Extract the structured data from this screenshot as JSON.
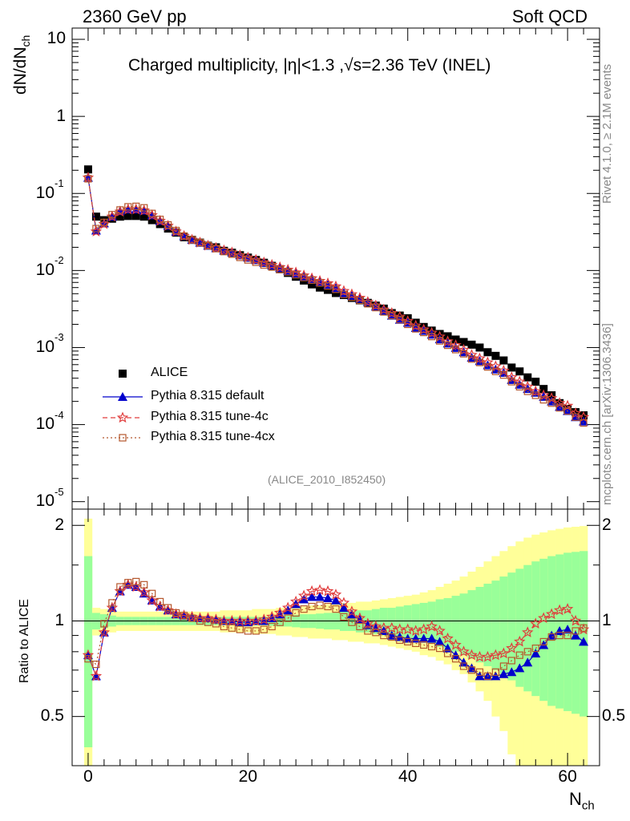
{
  "header": {
    "left": "2360 GeV pp",
    "right": "Soft QCD",
    "title": "Charged multiplicity, |η|<1.3 ,√s=2.36 TeV (INEL)",
    "analysis_id": "(ALICE_2010_I852450)",
    "side_rivet": "Rivet 4.1.0, ≥ 2.1M events",
    "side_mcplots": "mcplots.cern.ch [arXiv:1306.3436]"
  },
  "legend": [
    {
      "label": "ALICE",
      "marker": "square-filled",
      "color": "#000000"
    },
    {
      "label": "Pythia 8.315 default",
      "marker": "triangle-filled",
      "color": "#0000cc"
    },
    {
      "label": "Pythia 8.315 tune-4c",
      "marker": "star-open",
      "color": "#e03c3c"
    },
    {
      "label": "Pythia 8.315 tune-4cx",
      "marker": "square-open",
      "color": "#b5572d"
    }
  ],
  "chart_data": [
    {
      "type": "scatter",
      "title": "Charged multiplicity, |η|<1.3 ,√s=2.36 TeV (INEL)",
      "xlabel": "N_ch",
      "ylabel": "dN/dN_ch",
      "yscale": "log",
      "xlim": [
        -2,
        64
      ],
      "ylim": [
        8e-06,
        14
      ],
      "y_tick_labels": [
        "10",
        "1",
        "10^-1",
        "10^-2",
        "10^-3",
        "10^-4",
        "10^-5"
      ],
      "x": [
        0,
        1,
        2,
        3,
        4,
        5,
        6,
        7,
        8,
        9,
        10,
        11,
        12,
        13,
        14,
        15,
        16,
        17,
        18,
        19,
        20,
        21,
        22,
        23,
        24,
        25,
        26,
        27,
        28,
        29,
        30,
        31,
        32,
        33,
        34,
        35,
        36,
        37,
        38,
        39,
        40,
        41,
        42,
        43,
        44,
        45,
        46,
        47,
        48,
        49,
        50,
        51,
        52,
        53,
        54,
        55,
        56,
        57,
        58,
        59,
        60,
        61,
        62
      ],
      "series": [
        {
          "name": "ALICE",
          "values": [
            0.205,
            0.05,
            0.045,
            0.047,
            0.05,
            0.051,
            0.051,
            0.05,
            0.045,
            0.04,
            0.035,
            0.031,
            0.027,
            0.025,
            0.023,
            0.021,
            0.02,
            0.018,
            0.017,
            0.0158,
            0.0147,
            0.0137,
            0.0126,
            0.0115,
            0.0104,
            0.0093,
            0.0083,
            0.0074,
            0.0066,
            0.006,
            0.0056,
            0.0051,
            0.0048,
            0.0044,
            0.0041,
            0.0038,
            0.0035,
            0.0032,
            0.0028,
            0.0026,
            0.0024,
            0.0021,
            0.00185,
            0.00166,
            0.0015,
            0.0014,
            0.00127,
            0.00118,
            0.00109,
            0.001,
            0.00087,
            0.00078,
            0.00068,
            0.00055,
            0.00049,
            0.00041,
            0.00036,
            0.00029,
            0.00024,
            0.00019,
            0.00016,
            0.000145,
            0.000132
          ]
        },
        {
          "name": "Pythia 8.315 default",
          "values": [
            0.16,
            0.033,
            0.041,
            0.05,
            0.059,
            0.062,
            0.062,
            0.06,
            0.052,
            0.044,
            0.038,
            0.032,
            0.028,
            0.025,
            0.023,
            0.021,
            0.0195,
            0.0182,
            0.0172,
            0.0158,
            0.0147,
            0.0137,
            0.0126,
            0.0116,
            0.0108,
            0.0099,
            0.0091,
            0.0083,
            0.0077,
            0.0071,
            0.0065,
            0.0059,
            0.0051,
            0.0047,
            0.0043,
            0.0039,
            0.0034,
            0.003,
            0.0026,
            0.0023,
            0.0021,
            0.0018,
            0.00165,
            0.00147,
            0.00128,
            0.00113,
            0.00099,
            0.00087,
            0.00074,
            0.00067,
            0.00059,
            0.00052,
            0.00047,
            0.00038,
            0.00033,
            0.00029,
            0.00026,
            0.00023,
            0.0002,
            0.00017,
            0.00015,
            0.000125,
            0.00011
          ]
        },
        {
          "name": "Pythia 8.315 tune-4c",
          "values": [
            0.16,
            0.032,
            0.04,
            0.05,
            0.058,
            0.062,
            0.062,
            0.06,
            0.052,
            0.044,
            0.038,
            0.032,
            0.028,
            0.025,
            0.023,
            0.021,
            0.0196,
            0.0182,
            0.0171,
            0.0157,
            0.0147,
            0.0137,
            0.0127,
            0.0118,
            0.011,
            0.0102,
            0.0094,
            0.0086,
            0.0079,
            0.0073,
            0.0068,
            0.0062,
            0.0054,
            0.0049,
            0.0044,
            0.0039,
            0.0035,
            0.0031,
            0.0028,
            0.0025,
            0.0022,
            0.00192,
            0.00171,
            0.00155,
            0.00138,
            0.0012,
            0.00107,
            0.00093,
            0.0008,
            0.00072,
            0.00064,
            0.00057,
            0.0005,
            0.00041,
            0.00036,
            0.00031,
            0.00027,
            0.00024,
            0.00022,
            0.00019,
            0.000175,
            0.00014,
            0.000125
          ]
        },
        {
          "name": "Pythia 8.315 tune-4cx",
          "values": [
            0.155,
            0.035,
            0.042,
            0.053,
            0.061,
            0.067,
            0.068,
            0.065,
            0.055,
            0.046,
            0.039,
            0.033,
            0.028,
            0.025,
            0.023,
            0.021,
            0.0192,
            0.0176,
            0.0163,
            0.0148,
            0.0137,
            0.0128,
            0.0118,
            0.0111,
            0.0103,
            0.0096,
            0.0088,
            0.0081,
            0.0075,
            0.0069,
            0.0063,
            0.0057,
            0.0049,
            0.0045,
            0.0041,
            0.0037,
            0.0033,
            0.0029,
            0.0026,
            0.0023,
            0.002,
            0.00175,
            0.00157,
            0.00139,
            0.00122,
            0.00107,
            0.00094,
            0.00083,
            0.00071,
            0.00064,
            0.00056,
            0.00049,
            0.00044,
            0.00036,
            0.00031,
            0.00027,
            0.00024,
            0.00021,
            0.00019,
            0.000165,
            0.00015,
            0.000125,
            0.000105
          ]
        }
      ]
    },
    {
      "type": "scatter",
      "title": "",
      "xlabel": "N_ch",
      "ylabel": "Ratio to ALICE",
      "xlim": [
        -2,
        64
      ],
      "ylim": [
        0.35,
        2.25
      ],
      "x_tick_labels": [
        "0",
        "20",
        "40",
        "60"
      ],
      "y_tick_labels": [
        "0.5",
        "1",
        "2"
      ],
      "x": [
        0,
        1,
        2,
        3,
        4,
        5,
        6,
        7,
        8,
        9,
        10,
        11,
        12,
        13,
        14,
        15,
        16,
        17,
        18,
        19,
        20,
        21,
        22,
        23,
        24,
        25,
        26,
        27,
        28,
        29,
        30,
        31,
        32,
        33,
        34,
        35,
        36,
        37,
        38,
        39,
        40,
        41,
        42,
        43,
        44,
        45,
        46,
        47,
        48,
        49,
        50,
        51,
        52,
        53,
        54,
        55,
        56,
        57,
        58,
        59,
        60,
        61,
        62
      ],
      "bands": {
        "inner_lo": [
          0.4,
          0.94,
          0.95,
          0.96,
          0.97,
          0.97,
          0.97,
          0.97,
          0.97,
          0.97,
          0.97,
          0.97,
          0.97,
          0.97,
          0.97,
          0.97,
          0.97,
          0.97,
          0.97,
          0.97,
          0.97,
          0.97,
          0.97,
          0.965,
          0.96,
          0.96,
          0.955,
          0.95,
          0.95,
          0.945,
          0.94,
          0.94,
          0.93,
          0.93,
          0.92,
          0.92,
          0.91,
          0.9,
          0.9,
          0.89,
          0.88,
          0.87,
          0.86,
          0.85,
          0.83,
          0.82,
          0.8,
          0.78,
          0.76,
          0.74,
          0.72,
          0.7,
          0.68,
          0.65,
          0.62,
          0.6,
          0.58,
          0.56,
          0.54,
          0.53,
          0.52,
          0.51,
          0.5
        ],
        "inner_hi": [
          1.6,
          1.06,
          1.05,
          1.04,
          1.03,
          1.03,
          1.03,
          1.03,
          1.03,
          1.03,
          1.03,
          1.03,
          1.03,
          1.03,
          1.03,
          1.03,
          1.03,
          1.03,
          1.03,
          1.03,
          1.03,
          1.03,
          1.03,
          1.035,
          1.04,
          1.04,
          1.045,
          1.05,
          1.05,
          1.055,
          1.06,
          1.06,
          1.07,
          1.07,
          1.08,
          1.08,
          1.09,
          1.1,
          1.1,
          1.11,
          1.12,
          1.13,
          1.14,
          1.15,
          1.17,
          1.18,
          1.2,
          1.22,
          1.25,
          1.28,
          1.31,
          1.34,
          1.38,
          1.42,
          1.46,
          1.5,
          1.54,
          1.57,
          1.6,
          1.62,
          1.64,
          1.65,
          1.66
        ],
        "outer_lo": [
          0.35,
          0.9,
          0.91,
          0.92,
          0.93,
          0.93,
          0.93,
          0.93,
          0.93,
          0.93,
          0.93,
          0.93,
          0.93,
          0.93,
          0.93,
          0.93,
          0.93,
          0.92,
          0.92,
          0.92,
          0.92,
          0.91,
          0.91,
          0.91,
          0.9,
          0.9,
          0.89,
          0.89,
          0.88,
          0.88,
          0.88,
          0.87,
          0.87,
          0.86,
          0.86,
          0.85,
          0.85,
          0.84,
          0.83,
          0.82,
          0.81,
          0.8,
          0.78,
          0.77,
          0.75,
          0.73,
          0.7,
          0.68,
          0.64,
          0.6,
          0.56,
          0.5,
          0.45,
          0.38,
          0.35,
          0.35,
          0.35,
          0.35,
          0.35,
          0.35,
          0.35,
          0.35,
          0.35
        ],
        "outer_hi": [
          2.1,
          1.1,
          1.09,
          1.08,
          1.07,
          1.07,
          1.07,
          1.07,
          1.07,
          1.07,
          1.07,
          1.07,
          1.07,
          1.07,
          1.07,
          1.07,
          1.07,
          1.08,
          1.08,
          1.08,
          1.08,
          1.09,
          1.09,
          1.09,
          1.1,
          1.1,
          1.11,
          1.11,
          1.12,
          1.12,
          1.13,
          1.13,
          1.14,
          1.14,
          1.15,
          1.15,
          1.16,
          1.17,
          1.18,
          1.19,
          1.2,
          1.21,
          1.23,
          1.25,
          1.28,
          1.31,
          1.34,
          1.38,
          1.43,
          1.48,
          1.54,
          1.6,
          1.66,
          1.72,
          1.78,
          1.83,
          1.87,
          1.9,
          1.93,
          1.95,
          1.97,
          1.98,
          1.99
        ]
      },
      "series": [
        {
          "name": "Pythia 8.315 default",
          "values": [
            0.78,
            0.67,
            0.92,
            1.1,
            1.24,
            1.3,
            1.28,
            1.22,
            1.16,
            1.11,
            1.08,
            1.05,
            1.04,
            1.03,
            1.02,
            1.02,
            1.01,
            1.0,
            1.0,
            0.99,
            0.99,
            1.0,
            1.0,
            1.02,
            1.05,
            1.08,
            1.13,
            1.17,
            1.19,
            1.19,
            1.18,
            1.16,
            1.1,
            1.05,
            1.01,
            0.97,
            0.95,
            0.93,
            0.9,
            0.89,
            0.88,
            0.88,
            0.88,
            0.88,
            0.86,
            0.82,
            0.78,
            0.74,
            0.71,
            0.67,
            0.67,
            0.67,
            0.68,
            0.69,
            0.71,
            0.74,
            0.79,
            0.84,
            0.9,
            0.93,
            0.94,
            0.9,
            0.86
          ]
        },
        {
          "name": "Pythia 8.315 tune-4c",
          "values": [
            0.78,
            0.67,
            0.92,
            1.1,
            1.24,
            1.3,
            1.28,
            1.23,
            1.16,
            1.11,
            1.08,
            1.05,
            1.04,
            1.03,
            1.02,
            1.02,
            1.01,
            1.0,
            1.0,
            1.0,
            1.0,
            1.0,
            1.01,
            1.03,
            1.06,
            1.1,
            1.15,
            1.2,
            1.24,
            1.25,
            1.24,
            1.21,
            1.14,
            1.07,
            1.02,
            0.98,
            0.96,
            0.95,
            0.95,
            0.94,
            0.94,
            0.93,
            0.94,
            0.96,
            0.93,
            0.88,
            0.84,
            0.8,
            0.78,
            0.77,
            0.77,
            0.78,
            0.79,
            0.82,
            0.86,
            0.92,
            0.98,
            1.02,
            1.05,
            1.08,
            1.09,
            1.0,
            0.94
          ]
        },
        {
          "name": "Pythia 8.315 tune-4cx",
          "values": [
            0.76,
            0.73,
            0.98,
            1.14,
            1.28,
            1.32,
            1.33,
            1.3,
            1.22,
            1.15,
            1.1,
            1.06,
            1.04,
            1.02,
            1.0,
            0.99,
            0.98,
            0.96,
            0.95,
            0.94,
            0.93,
            0.93,
            0.94,
            0.96,
            0.99,
            1.02,
            1.06,
            1.09,
            1.11,
            1.12,
            1.11,
            1.09,
            1.03,
            0.99,
            0.96,
            0.93,
            0.92,
            0.9,
            0.89,
            0.87,
            0.86,
            0.85,
            0.84,
            0.83,
            0.82,
            0.79,
            0.76,
            0.72,
            0.7,
            0.69,
            0.67,
            0.69,
            0.72,
            0.75,
            0.78,
            0.8,
            0.82,
            0.86,
            0.89,
            0.9,
            0.9,
            0.93,
            0.95
          ]
        }
      ]
    }
  ]
}
